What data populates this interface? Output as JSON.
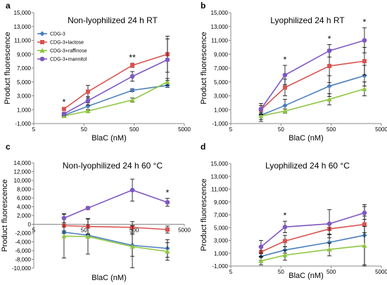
{
  "series_names": [
    "CDG-3",
    "CDG-3+lactose",
    "CDG-3+raffinose",
    "CDG-3+mannitol"
  ],
  "series_colors": [
    "#4a7ebb",
    "#d9534f",
    "#8dc63f",
    "#7e57c2"
  ],
  "chart_data": [
    {
      "type": "line",
      "panel_label": "a",
      "title": "Non-lyophilized 24 h RT",
      "xlabel": "BlaC (nM)",
      "ylabel": "Product fluorescence",
      "x_scale": "log",
      "xlim": [
        5,
        5000
      ],
      "x_ticks": [
        5,
        50,
        500,
        5000
      ],
      "x_tick_labels": [
        "5",
        "50",
        "500",
        "5000"
      ],
      "ylim": [
        -1000,
        15000
      ],
      "y_ticks": [
        -1000,
        1000,
        3000,
        5000,
        7000,
        9000,
        11000,
        13000,
        15000
      ],
      "y_tick_labels": [
        "-1,000",
        "1,000",
        "3,000",
        "5,000",
        "7,000",
        "9,000",
        "11,000",
        "13,000",
        "15,000"
      ],
      "x": [
        20,
        60,
        460,
        2300
      ],
      "series": [
        {
          "name": "CDG-3",
          "values": [
            200,
            1500,
            3800,
            4500
          ],
          "errors": [
            150,
            500,
            200,
            300
          ]
        },
        {
          "name": "CDG-3+lactose",
          "values": [
            1100,
            3600,
            7400,
            9000
          ],
          "errors": [
            200,
            900,
            300,
            2600
          ]
        },
        {
          "name": "CDG-3+raffinose",
          "values": [
            100,
            800,
            2400,
            5000
          ],
          "errors": [
            100,
            200,
            300,
            500
          ]
        },
        {
          "name": "CDG-3+mannitol",
          "values": [
            400,
            2300,
            5800,
            8200
          ],
          "errors": [
            200,
            600,
            700,
            3000
          ]
        }
      ],
      "annotations": [
        {
          "x": 20,
          "text": "*"
        },
        {
          "x": 460,
          "text": "**"
        }
      ],
      "legend": "top-left"
    },
    {
      "type": "line",
      "panel_label": "b",
      "title": "Lyophilized 24 h RT",
      "xlabel": "BlaC (nM)",
      "ylabel": "Product fluorescence",
      "x_scale": "log",
      "xlim": [
        5,
        5000
      ],
      "x_ticks": [
        5,
        50,
        500,
        5000
      ],
      "x_tick_labels": [
        "5",
        "50",
        "500",
        "5000"
      ],
      "ylim": [
        -1000,
        15000
      ],
      "y_ticks": [
        -1000,
        1000,
        3000,
        5000,
        7000,
        9000,
        11000,
        13000,
        15000
      ],
      "y_tick_labels": [
        "-1,000",
        "1,000",
        "3,000",
        "5,000",
        "7,000",
        "9,000",
        "11,000",
        "13,000",
        "15,000"
      ],
      "x": [
        20,
        60,
        460,
        2300
      ],
      "series": [
        {
          "name": "CDG-3",
          "values": [
            200,
            1600,
            4400,
            5900
          ],
          "errors": [
            900,
            900,
            1500,
            1500
          ]
        },
        {
          "name": "CDG-3+lactose",
          "values": [
            1000,
            4200,
            7300,
            8000
          ],
          "errors": [
            600,
            1200,
            2400,
            2000
          ]
        },
        {
          "name": "CDG-3+raffinose",
          "values": [
            100,
            800,
            2500,
            4000
          ],
          "errors": [
            500,
            300,
            800,
            1000
          ]
        },
        {
          "name": "CDG-3+mannitol",
          "values": [
            1100,
            6000,
            9500,
            11000
          ],
          "errors": [
            800,
            1400,
            900,
            1800
          ]
        }
      ],
      "annotations": [
        {
          "x": 60,
          "text": "*"
        },
        {
          "x": 460,
          "text": "*"
        },
        {
          "x": 2300,
          "text": "*"
        }
      ]
    },
    {
      "type": "line",
      "panel_label": "c",
      "title": "Non-lyophilized 24 h 60 °C",
      "xlabel": "BlaC (nM)",
      "ylabel": "Product fluorescence",
      "x_scale": "log",
      "xlim": [
        5,
        5000
      ],
      "x_ticks": [
        5,
        50,
        500,
        5000
      ],
      "x_tick_labels": [
        "5",
        "50",
        "500",
        "5000"
      ],
      "ylim": [
        -10000,
        14000
      ],
      "y_ticks": [
        -10000,
        -8000,
        -6000,
        -4000,
        -2000,
        0,
        2000,
        4000,
        6000,
        8000,
        10000,
        12000,
        14000
      ],
      "y_tick_labels": [
        "-10,000",
        "-8,000",
        "-6,000",
        "-4,000",
        "-2,000",
        "0",
        "2,000",
        "4,000",
        "6,000",
        "8,000",
        "10,000",
        "12,000",
        "14,000"
      ],
      "x": [
        20,
        60,
        460,
        2300
      ],
      "series": [
        {
          "name": "CDG-3",
          "values": [
            -1800,
            -2500,
            -4800,
            -5500
          ],
          "errors": [
            300,
            300,
            2500,
            2000
          ]
        },
        {
          "name": "CDG-3+lactose",
          "values": [
            -300,
            -500,
            -700,
            -1200
          ],
          "errors": [
            300,
            1800,
            1300,
            800
          ]
        },
        {
          "name": "CDG-3+raffinose",
          "values": [
            -2700,
            -2800,
            -5100,
            -6200
          ],
          "errors": [
            5000,
            4000,
            4800,
            2000
          ]
        },
        {
          "name": "CDG-3+mannitol",
          "values": [
            1400,
            3700,
            7800,
            5000
          ],
          "errors": [
            1000,
            300,
            2500,
            900
          ]
        }
      ],
      "annotations": [
        {
          "x": 2300,
          "text": "*"
        }
      ]
    },
    {
      "type": "line",
      "panel_label": "d",
      "title": "Lyophilized 24 h 60 °C",
      "xlabel": "BlaC (nM)",
      "ylabel": "Product fluorescence",
      "x_scale": "log",
      "xlim": [
        5,
        5000
      ],
      "x_ticks": [
        5,
        50,
        500,
        5000
      ],
      "x_tick_labels": [
        "5",
        "50",
        "500",
        "5000"
      ],
      "ylim": [
        -1000,
        15000
      ],
      "y_ticks": [
        -1000,
        1000,
        3000,
        5000,
        7000,
        9000,
        11000,
        13000,
        15000
      ],
      "y_tick_labels": [
        "-1,000",
        "1,000",
        "3,000",
        "5,000",
        "7,000",
        "9,000",
        "11,000",
        "13,000",
        "15,000"
      ],
      "x": [
        20,
        60,
        460,
        2300
      ],
      "series": [
        {
          "name": "CDG-3",
          "values": [
            500,
            1500,
            2700,
            3800
          ],
          "errors": [
            600,
            500,
            1300,
            4800
          ]
        },
        {
          "name": "CDG-3+lactose",
          "values": [
            1200,
            2900,
            4800,
            5500
          ],
          "errors": [
            700,
            900,
            900,
            1300
          ]
        },
        {
          "name": "CDG-3+raffinose",
          "values": [
            -200,
            700,
            1600,
            2200
          ],
          "errors": [
            600,
            800,
            1000,
            3000
          ]
        },
        {
          "name": "CDG-3+mannitol",
          "values": [
            2000,
            5100,
            5600,
            7300
          ],
          "errors": [
            1000,
            900,
            2200,
            1000
          ]
        }
      ],
      "annotations": [
        {
          "x": 60,
          "text": "*"
        }
      ]
    }
  ]
}
